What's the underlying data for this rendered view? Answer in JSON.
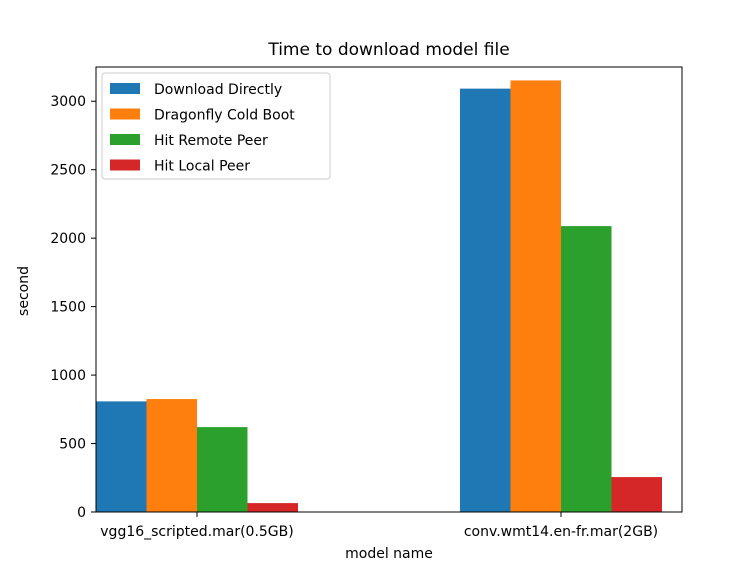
{
  "chart_data": {
    "type": "bar",
    "title": "Time to download model file",
    "xlabel": "model name",
    "ylabel": "second",
    "categories": [
      "vgg16_scripted.mar(0.5GB)",
      "conv.wmt14.en-fr.mar(2GB)"
    ],
    "series": [
      {
        "name": "Download Directly",
        "color": "#1f77b4",
        "values": [
          808,
          3092
        ]
      },
      {
        "name": "Dragonfly Cold Boot",
        "color": "#ff7f0e",
        "values": [
          825,
          3152
        ]
      },
      {
        "name": "Hit Remote Peer",
        "color": "#2ca02c",
        "values": [
          620,
          2088
        ]
      },
      {
        "name": "Hit Local Peer",
        "color": "#d62728",
        "values": [
          65,
          255
        ]
      }
    ],
    "ylim": [
      0,
      3250
    ],
    "yticks": [
      0,
      500,
      1000,
      1500,
      2000,
      2500,
      3000
    ],
    "grid": false,
    "legend_position": "upper-left"
  }
}
